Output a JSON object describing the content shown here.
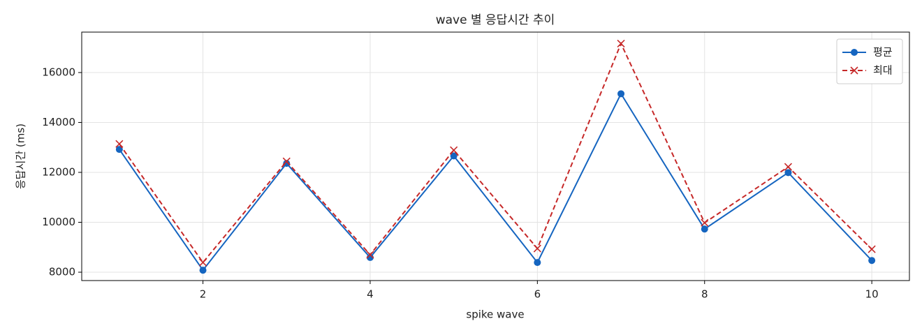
{
  "chart_data": {
    "type": "line",
    "title": "wave 별 응답시간 추이",
    "xlabel": "spike wave",
    "ylabel": "응답시간 (ms)",
    "x": [
      1,
      2,
      3,
      4,
      5,
      6,
      7,
      8,
      9,
      10
    ],
    "series": [
      {
        "name": "평균",
        "color": "#1565c0",
        "marker": "circle",
        "linestyle": "solid",
        "values": [
          12920,
          8080,
          12360,
          8590,
          12660,
          8390,
          15150,
          9730,
          11990,
          8470
        ]
      },
      {
        "name": "최대",
        "color": "#c62828",
        "marker": "x",
        "linestyle": "dashed",
        "values": [
          13140,
          8390,
          12440,
          8700,
          12890,
          8950,
          17160,
          9980,
          12220,
          8920
        ]
      }
    ],
    "xlim": [
      0.55,
      10.45
    ],
    "ylim": [
      7665,
      17620
    ],
    "xticks": [
      2,
      4,
      6,
      8,
      10
    ],
    "yticks": [
      8000,
      10000,
      12000,
      14000,
      16000
    ],
    "grid": true,
    "legend": "upper right"
  }
}
